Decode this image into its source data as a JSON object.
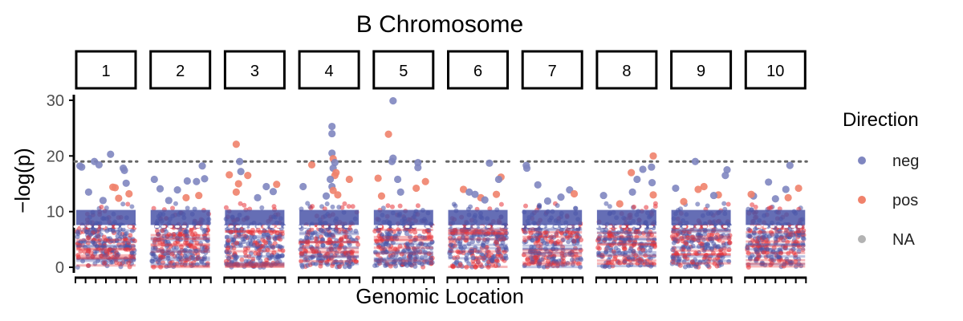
{
  "chart_data": {
    "type": "scatter",
    "title": "B Chromosome",
    "xlabel": "Genomic Location",
    "ylabel": "−log(p)",
    "ylim": [
      -1,
      31
    ],
    "y_ticks": [
      0,
      10,
      20,
      30
    ],
    "thresholds": [
      7.3,
      19.0
    ],
    "facets": [
      "1",
      "2",
      "3",
      "4",
      "5",
      "6",
      "7",
      "8",
      "9",
      "10"
    ],
    "legend": {
      "title": "Direction",
      "position": "right",
      "items": [
        {
          "label": "neg",
          "color": "#7f86c0"
        },
        {
          "label": "pos",
          "color": "#f0826b"
        },
        {
          "label": "NA",
          "color": "#b3b3b3"
        }
      ]
    },
    "colors": {
      "neg_dense": "#4a55a8",
      "pos_dense": "#e8353a",
      "threshold_line": "#666666",
      "axis": "#000000"
    },
    "x_range": [
      0,
      1
    ],
    "panels": [
      {
        "id": "1",
        "points": [
          {
            "x": 0.05,
            "y": 18.2,
            "d": "neg"
          },
          {
            "x": 0.08,
            "y": 18.0,
            "d": "neg"
          },
          {
            "x": 0.3,
            "y": 19.0,
            "d": "neg"
          },
          {
            "x": 0.38,
            "y": 18.4,
            "d": "neg"
          },
          {
            "x": 0.58,
            "y": 20.3,
            "d": "neg"
          },
          {
            "x": 0.8,
            "y": 17.8,
            "d": "neg"
          },
          {
            "x": 0.82,
            "y": 17.4,
            "d": "neg"
          },
          {
            "x": 0.62,
            "y": 14.4,
            "d": "pos"
          },
          {
            "x": 0.66,
            "y": 14.3,
            "d": "pos"
          },
          {
            "x": 0.9,
            "y": 13.2,
            "d": "pos"
          },
          {
            "x": 0.85,
            "y": 15.1,
            "d": "neg"
          },
          {
            "x": 0.45,
            "y": 12.0,
            "d": "neg"
          },
          {
            "x": 0.2,
            "y": 13.5,
            "d": "neg"
          },
          {
            "x": 0.72,
            "y": 12.4,
            "d": "pos"
          }
        ]
      },
      {
        "id": "2",
        "points": [
          {
            "x": 0.05,
            "y": 15.8,
            "d": "neg"
          },
          {
            "x": 0.15,
            "y": 14.1,
            "d": "neg"
          },
          {
            "x": 0.45,
            "y": 13.9,
            "d": "neg"
          },
          {
            "x": 0.62,
            "y": 15.5,
            "d": "neg"
          },
          {
            "x": 0.78,
            "y": 15.4,
            "d": "neg"
          },
          {
            "x": 0.88,
            "y": 18.2,
            "d": "neg"
          },
          {
            "x": 0.92,
            "y": 15.9,
            "d": "neg"
          },
          {
            "x": 0.6,
            "y": 12.5,
            "d": "pos"
          },
          {
            "x": 0.82,
            "y": 12.9,
            "d": "pos"
          },
          {
            "x": 0.3,
            "y": 12.0,
            "d": "neg"
          }
        ]
      },
      {
        "id": "3",
        "points": [
          {
            "x": 0.18,
            "y": 22.1,
            "d": "pos"
          },
          {
            "x": 0.24,
            "y": 19.0,
            "d": "neg"
          },
          {
            "x": 0.26,
            "y": 17.2,
            "d": "neg"
          },
          {
            "x": 0.06,
            "y": 16.6,
            "d": "pos"
          },
          {
            "x": 0.38,
            "y": 16.5,
            "d": "pos"
          },
          {
            "x": 0.22,
            "y": 15.0,
            "d": "pos"
          },
          {
            "x": 0.18,
            "y": 13.5,
            "d": "pos"
          },
          {
            "x": 0.88,
            "y": 14.9,
            "d": "pos"
          },
          {
            "x": 0.7,
            "y": 14.5,
            "d": "neg"
          },
          {
            "x": 0.82,
            "y": 13.6,
            "d": "neg"
          },
          {
            "x": 0.55,
            "y": 12.5,
            "d": "neg"
          }
        ]
      },
      {
        "id": "4",
        "points": [
          {
            "x": 0.55,
            "y": 25.3,
            "d": "neg"
          },
          {
            "x": 0.55,
            "y": 24.0,
            "d": "neg"
          },
          {
            "x": 0.55,
            "y": 20.5,
            "d": "neg"
          },
          {
            "x": 0.57,
            "y": 19.5,
            "d": "pos"
          },
          {
            "x": 0.6,
            "y": 18.8,
            "d": "neg"
          },
          {
            "x": 0.57,
            "y": 17.8,
            "d": "neg"
          },
          {
            "x": 0.62,
            "y": 17.0,
            "d": "pos"
          },
          {
            "x": 0.6,
            "y": 16.5,
            "d": "pos"
          },
          {
            "x": 0.52,
            "y": 15.8,
            "d": "neg"
          },
          {
            "x": 0.55,
            "y": 14.5,
            "d": "neg"
          },
          {
            "x": 0.57,
            "y": 13.8,
            "d": "pos"
          },
          {
            "x": 0.85,
            "y": 15.8,
            "d": "pos"
          },
          {
            "x": 0.2,
            "y": 18.4,
            "d": "pos"
          },
          {
            "x": 0.05,
            "y": 14.5,
            "d": "neg"
          },
          {
            "x": 0.65,
            "y": 13.0,
            "d": "pos"
          },
          {
            "x": 0.45,
            "y": 12.8,
            "d": "neg"
          }
        ]
      },
      {
        "id": "5",
        "points": [
          {
            "x": 0.32,
            "y": 29.9,
            "d": "neg"
          },
          {
            "x": 0.24,
            "y": 23.9,
            "d": "pos"
          },
          {
            "x": 0.32,
            "y": 19.6,
            "d": "neg"
          },
          {
            "x": 0.3,
            "y": 19.0,
            "d": "neg"
          },
          {
            "x": 0.75,
            "y": 18.8,
            "d": "neg"
          },
          {
            "x": 0.75,
            "y": 17.9,
            "d": "neg"
          },
          {
            "x": 0.06,
            "y": 16.0,
            "d": "pos"
          },
          {
            "x": 0.4,
            "y": 15.8,
            "d": "neg"
          },
          {
            "x": 0.88,
            "y": 15.4,
            "d": "pos"
          },
          {
            "x": 0.72,
            "y": 14.2,
            "d": "pos"
          },
          {
            "x": 0.45,
            "y": 13.5,
            "d": "neg"
          },
          {
            "x": 0.12,
            "y": 12.8,
            "d": "pos"
          }
        ]
      },
      {
        "id": "6",
        "points": [
          {
            "x": 0.7,
            "y": 18.7,
            "d": "neg"
          },
          {
            "x": 0.9,
            "y": 16.2,
            "d": "pos"
          },
          {
            "x": 0.86,
            "y": 15.8,
            "d": "neg"
          },
          {
            "x": 0.25,
            "y": 14.0,
            "d": "pos"
          },
          {
            "x": 0.35,
            "y": 13.5,
            "d": "neg"
          },
          {
            "x": 0.55,
            "y": 12.5,
            "d": "pos"
          },
          {
            "x": 0.82,
            "y": 13.1,
            "d": "pos"
          },
          {
            "x": 0.62,
            "y": 12.1,
            "d": "neg"
          },
          {
            "x": 0.45,
            "y": 13.1,
            "d": "neg"
          }
        ]
      },
      {
        "id": "7",
        "points": [
          {
            "x": 0.05,
            "y": 18.3,
            "d": "neg"
          },
          {
            "x": 0.06,
            "y": 17.8,
            "d": "neg"
          },
          {
            "x": 0.25,
            "y": 14.8,
            "d": "neg"
          },
          {
            "x": 0.65,
            "y": 12.6,
            "d": "neg"
          },
          {
            "x": 0.8,
            "y": 13.9,
            "d": "neg"
          },
          {
            "x": 0.88,
            "y": 13.2,
            "d": "pos"
          },
          {
            "x": 0.42,
            "y": 11.9,
            "d": "neg"
          }
        ]
      },
      {
        "id": "8",
        "points": [
          {
            "x": 0.96,
            "y": 20.0,
            "d": "pos"
          },
          {
            "x": 0.93,
            "y": 18.0,
            "d": "neg"
          },
          {
            "x": 0.78,
            "y": 17.6,
            "d": "neg"
          },
          {
            "x": 0.58,
            "y": 17.0,
            "d": "pos"
          },
          {
            "x": 0.68,
            "y": 15.8,
            "d": "neg"
          },
          {
            "x": 0.94,
            "y": 15.2,
            "d": "neg"
          },
          {
            "x": 0.96,
            "y": 13.0,
            "d": "pos"
          },
          {
            "x": 0.6,
            "y": 13.5,
            "d": "neg"
          },
          {
            "x": 0.1,
            "y": 12.9,
            "d": "neg"
          },
          {
            "x": 0.38,
            "y": 11.4,
            "d": "pos"
          }
        ]
      },
      {
        "id": "9",
        "points": [
          {
            "x": 0.4,
            "y": 19.0,
            "d": "neg"
          },
          {
            "x": 0.95,
            "y": 17.5,
            "d": "neg"
          },
          {
            "x": 0.92,
            "y": 16.5,
            "d": "neg"
          },
          {
            "x": 0.06,
            "y": 14.2,
            "d": "neg"
          },
          {
            "x": 0.55,
            "y": 14.5,
            "d": "pos"
          },
          {
            "x": 0.45,
            "y": 14.0,
            "d": "pos"
          },
          {
            "x": 0.8,
            "y": 13.0,
            "d": "pos"
          },
          {
            "x": 0.72,
            "y": 12.9,
            "d": "neg"
          },
          {
            "x": 0.2,
            "y": 11.8,
            "d": "pos"
          }
        ]
      },
      {
        "id": "10",
        "points": [
          {
            "x": 0.75,
            "y": 18.3,
            "d": "neg"
          },
          {
            "x": 0.38,
            "y": 15.3,
            "d": "neg"
          },
          {
            "x": 0.68,
            "y": 14.0,
            "d": "neg"
          },
          {
            "x": 0.9,
            "y": 14.2,
            "d": "pos"
          },
          {
            "x": 0.12,
            "y": 12.8,
            "d": "neg"
          },
          {
            "x": 0.08,
            "y": 13.1,
            "d": "pos"
          },
          {
            "x": 0.72,
            "y": 12.5,
            "d": "pos"
          },
          {
            "x": 0.5,
            "y": 12.3,
            "d": "neg"
          }
        ]
      }
    ]
  }
}
